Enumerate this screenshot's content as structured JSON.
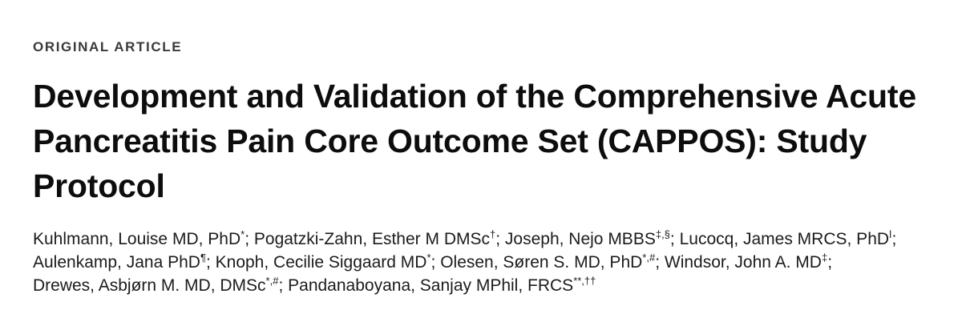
{
  "article": {
    "section_label": "ORIGINAL ARTICLE",
    "title": "Development and Validation of the Comprehensive Acute Pancreatitis Pain Core Outcome Set (CAPPOS): Study Protocol",
    "authors": [
      {
        "name": "Kuhlmann, Louise MD, PhD",
        "sup": "*",
        "sep": ";"
      },
      {
        "name": "Pogatzki-Zahn, Esther M DMSc",
        "sup": "†",
        "sep": ";"
      },
      {
        "name": "Joseph, Nejo MBBS",
        "sup": "‡,§",
        "sep": ";"
      },
      {
        "name": "Lucocq, James MRCS, PhD",
        "sup": "ǀ",
        "sep": ";"
      },
      {
        "name": "Aulenkamp, Jana PhD",
        "sup": "¶",
        "sep": ";"
      },
      {
        "name": "Knoph, Cecilie Siggaard MD",
        "sup": "*",
        "sep": ";"
      },
      {
        "name": "Olesen, Søren S. MD, PhD",
        "sup": "*,#",
        "sep": ";"
      },
      {
        "name": "Windsor, John A. MD",
        "sup": "‡",
        "sep": ";"
      },
      {
        "name": "Drewes, Asbjørn M. MD, DMSc",
        "sup": "*,#",
        "sep": ";"
      },
      {
        "name": "Pandanaboyana, Sanjay MPhil, FRCS",
        "sup": "**,††",
        "sep": ""
      }
    ]
  }
}
